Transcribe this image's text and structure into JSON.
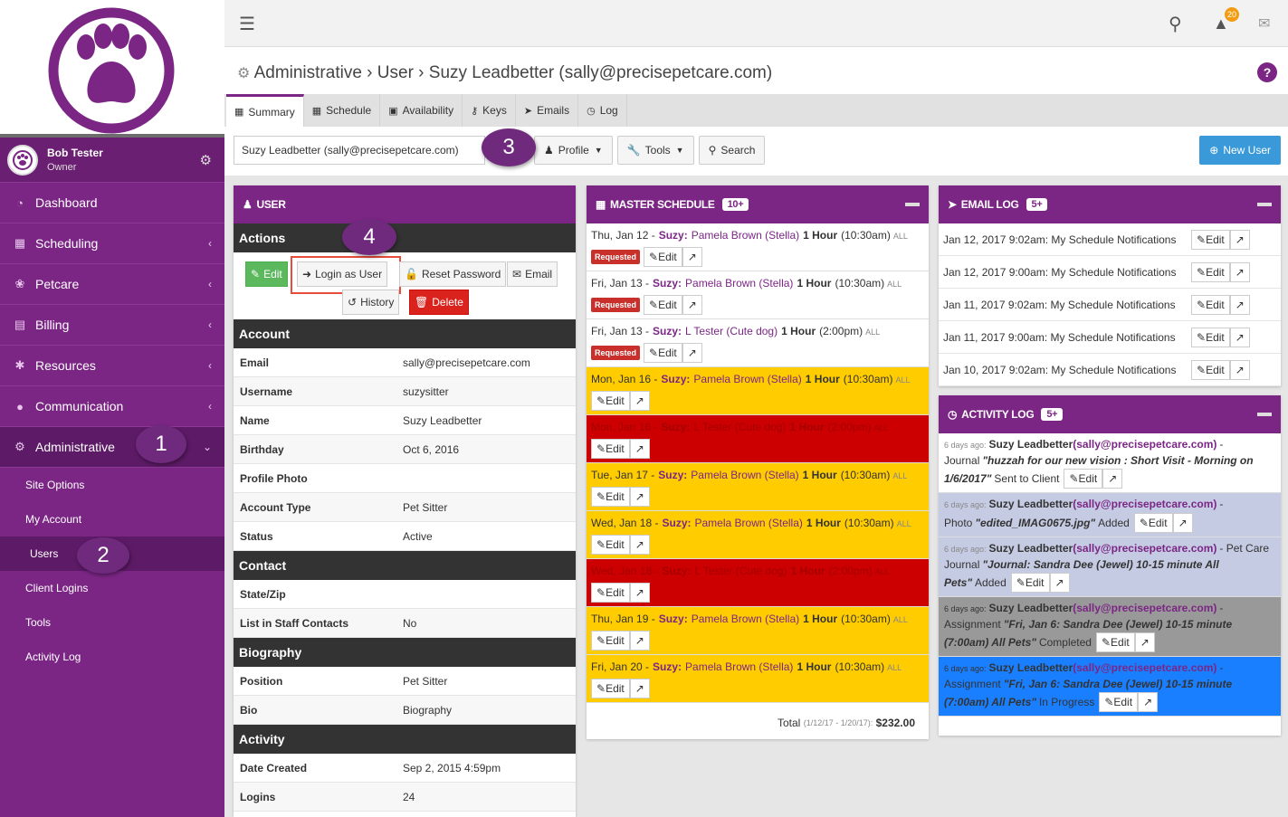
{
  "sidebar": {
    "user_name": "Bob Tester",
    "user_role": "Owner",
    "nav": [
      {
        "label": "Dashboard",
        "icon": "dashboard-icon"
      },
      {
        "label": "Scheduling",
        "icon": "calendar-icon"
      },
      {
        "label": "Petcare",
        "icon": "paw-icon"
      },
      {
        "label": "Billing",
        "icon": "file-icon"
      },
      {
        "label": "Resources",
        "icon": "asterisk-icon"
      },
      {
        "label": "Communication",
        "icon": "comments-icon"
      },
      {
        "label": "Administrative",
        "icon": "cogs-icon"
      }
    ],
    "sub": [
      "Site Options",
      "My Account",
      "Users",
      "Client Logins",
      "Tools",
      "Activity Log"
    ]
  },
  "topbar": {
    "notification_count": "20"
  },
  "header": {
    "breadcrumb": "Administrative › User › Suzy Leadbetter (sally@precisepetcare.com)",
    "tabs": [
      "Summary",
      "Schedule",
      "Availability",
      "Keys",
      "Emails",
      "Log"
    ]
  },
  "toolbar": {
    "selected_user": "Suzy Leadbetter (sally@precisepetcare.com)",
    "profile": "Profile",
    "tools": "Tools",
    "search": "Search",
    "new_user": "New User"
  },
  "callouts": [
    "1",
    "2",
    "3",
    "4"
  ],
  "user_panel": {
    "title": "USER",
    "actions_title": "Actions",
    "buttons": {
      "edit": "Edit",
      "login_as": "Login as User",
      "reset": "Reset Password",
      "email": "Email",
      "history": "History",
      "delete": "Delete"
    },
    "account_title": "Account",
    "account": [
      {
        "k": "Email",
        "v": "sally@precisepetcare.com"
      },
      {
        "k": "Username",
        "v": "suzysitter"
      },
      {
        "k": "Name",
        "v": "Suzy Leadbetter"
      },
      {
        "k": "Birthday",
        "v": "Oct 6, 2016"
      },
      {
        "k": "Profile Photo",
        "v": ""
      },
      {
        "k": "Account Type",
        "v": "Pet Sitter"
      },
      {
        "k": "Status",
        "v": "Active"
      }
    ],
    "contact_title": "Contact",
    "contact": [
      {
        "k": "State/Zip",
        "v": ""
      },
      {
        "k": "List in Staff Contacts",
        "v": "No"
      }
    ],
    "bio_title": "Biography",
    "bio": [
      {
        "k": "Position",
        "v": "Pet Sitter"
      },
      {
        "k": "Bio",
        "v": "Biography"
      }
    ],
    "activity_title": "Activity",
    "activity": [
      {
        "k": "Date Created",
        "v": "Sep 2, 2015 4:59pm"
      },
      {
        "k": "Logins",
        "v": "24"
      }
    ]
  },
  "schedule": {
    "title": "MASTER SCHEDULE",
    "count": "10+",
    "requested_label": "Requested",
    "edit_label": "Edit",
    "all_label": "ALL",
    "items": [
      {
        "date": "Thu, Jan 12 -",
        "who": "Suzy:",
        "client": "Pamela Brown (Stella)",
        "dur": "1 Hour",
        "time": "(10:30am)",
        "req": true,
        "bg": "#ffffff"
      },
      {
        "date": "Fri, Jan 13 -",
        "who": "Suzy:",
        "client": "Pamela Brown (Stella)",
        "dur": "1 Hour",
        "time": "(10:30am)",
        "req": true,
        "bg": "#ffffff"
      },
      {
        "date": "Fri, Jan 13 -",
        "who": "Suzy:",
        "client": "L Tester (Cute dog)",
        "dur": "1 Hour",
        "time": "(2:00pm)",
        "req": true,
        "bg": "#ffffff"
      },
      {
        "date": "Mon, Jan 16 -",
        "who": "Suzy:",
        "client": "Pamela Brown (Stella)",
        "dur": "1 Hour",
        "time": "(10:30am)",
        "req": false,
        "bg": "#ffcc00"
      },
      {
        "date": "Mon, Jan 16 -",
        "who": "Suzy:",
        "client": "L Tester (Cute dog)",
        "dur": "1 Hour",
        "time": "(2:00pm)",
        "req": false,
        "bg": "#cc0000"
      },
      {
        "date": "Tue, Jan 17 -",
        "who": "Suzy:",
        "client": "Pamela Brown (Stella)",
        "dur": "1 Hour",
        "time": "(10:30am)",
        "req": false,
        "bg": "#ffcc00"
      },
      {
        "date": "Wed, Jan 18 -",
        "who": "Suzy:",
        "client": "Pamela Brown (Stella)",
        "dur": "1 Hour",
        "time": "(10:30am)",
        "req": false,
        "bg": "#ffcc00"
      },
      {
        "date": "Wed, Jan 18 -",
        "who": "Suzy:",
        "client": "L Tester (Cute dog)",
        "dur": "1 Hour",
        "time": "(2:00pm)",
        "req": false,
        "bg": "#cc0000"
      },
      {
        "date": "Thu, Jan 19 -",
        "who": "Suzy:",
        "client": "Pamela Brown (Stella)",
        "dur": "1 Hour",
        "time": "(10:30am)",
        "req": false,
        "bg": "#ffcc00"
      },
      {
        "date": "Fri, Jan 20 -",
        "who": "Suzy:",
        "client": "Pamela Brown (Stella)",
        "dur": "1 Hour",
        "time": "(10:30am)",
        "req": false,
        "bg": "#ffcc00"
      }
    ],
    "total_label": "Total",
    "total_range": "(1/12/17 - 1/20/17):",
    "total_value": "$232.00"
  },
  "email_log": {
    "title": "EMAIL LOG",
    "count": "5+",
    "items": [
      "Jan 12, 2017 9:02am: My Schedule Notifications",
      "Jan 12, 2017 9:00am: My Schedule Notifications",
      "Jan 11, 2017 9:02am: My Schedule Notifications",
      "Jan 11, 2017 9:00am: My Schedule Notifications",
      "Jan 10, 2017 9:02am: My Schedule Notifications"
    ]
  },
  "activity_log": {
    "title": "ACTIVITY LOG",
    "count": "5+",
    "items": [
      {
        "ago": "6 days ago:",
        "name": "Suzy Leadbetter",
        "email": "(sally@precisepetcare.com)",
        "pre": "- Journal",
        "quote": "\"huzzah for our new vision : Short Visit - Morning on 1/6/2017\"",
        "post": "Sent to Client",
        "bg": "#ffffff"
      },
      {
        "ago": "6 days ago:",
        "name": "Suzy Leadbetter",
        "email": "(sally@precisepetcare.com)",
        "pre": "- Photo",
        "quote": "\"edited_IMAG0675.jpg\"",
        "post": "Added",
        "bg": "#c5cbe3"
      },
      {
        "ago": "6 days ago:",
        "name": "Suzy Leadbetter",
        "email": "(sally@precisepetcare.com)",
        "pre": "- Pet Care Journal",
        "quote": "\"Journal: Sandra Dee (Jewel) 10-15 minute All Pets\"",
        "post": "Added",
        "bg": "#c5cbe3"
      },
      {
        "ago": "6 days ago:",
        "name": "Suzy Leadbetter",
        "email": "(sally@precisepetcare.com)",
        "pre": "- Assignment",
        "quote": "\"Fri, Jan 6: Sandra Dee (Jewel) 10-15 minute (7:00am) All Pets\"",
        "post": "Completed",
        "bg": "#999999"
      },
      {
        "ago": "6 days ago:",
        "name": "Suzy Leadbetter",
        "email": "(sally@precisepetcare.com)",
        "pre": "- Assignment",
        "quote": "\"Fri, Jan 6: Sandra Dee (Jewel) 10-15 minute (7:00am) All Pets\"",
        "post": "In Progress",
        "bg": "#1a7fff"
      }
    ]
  }
}
